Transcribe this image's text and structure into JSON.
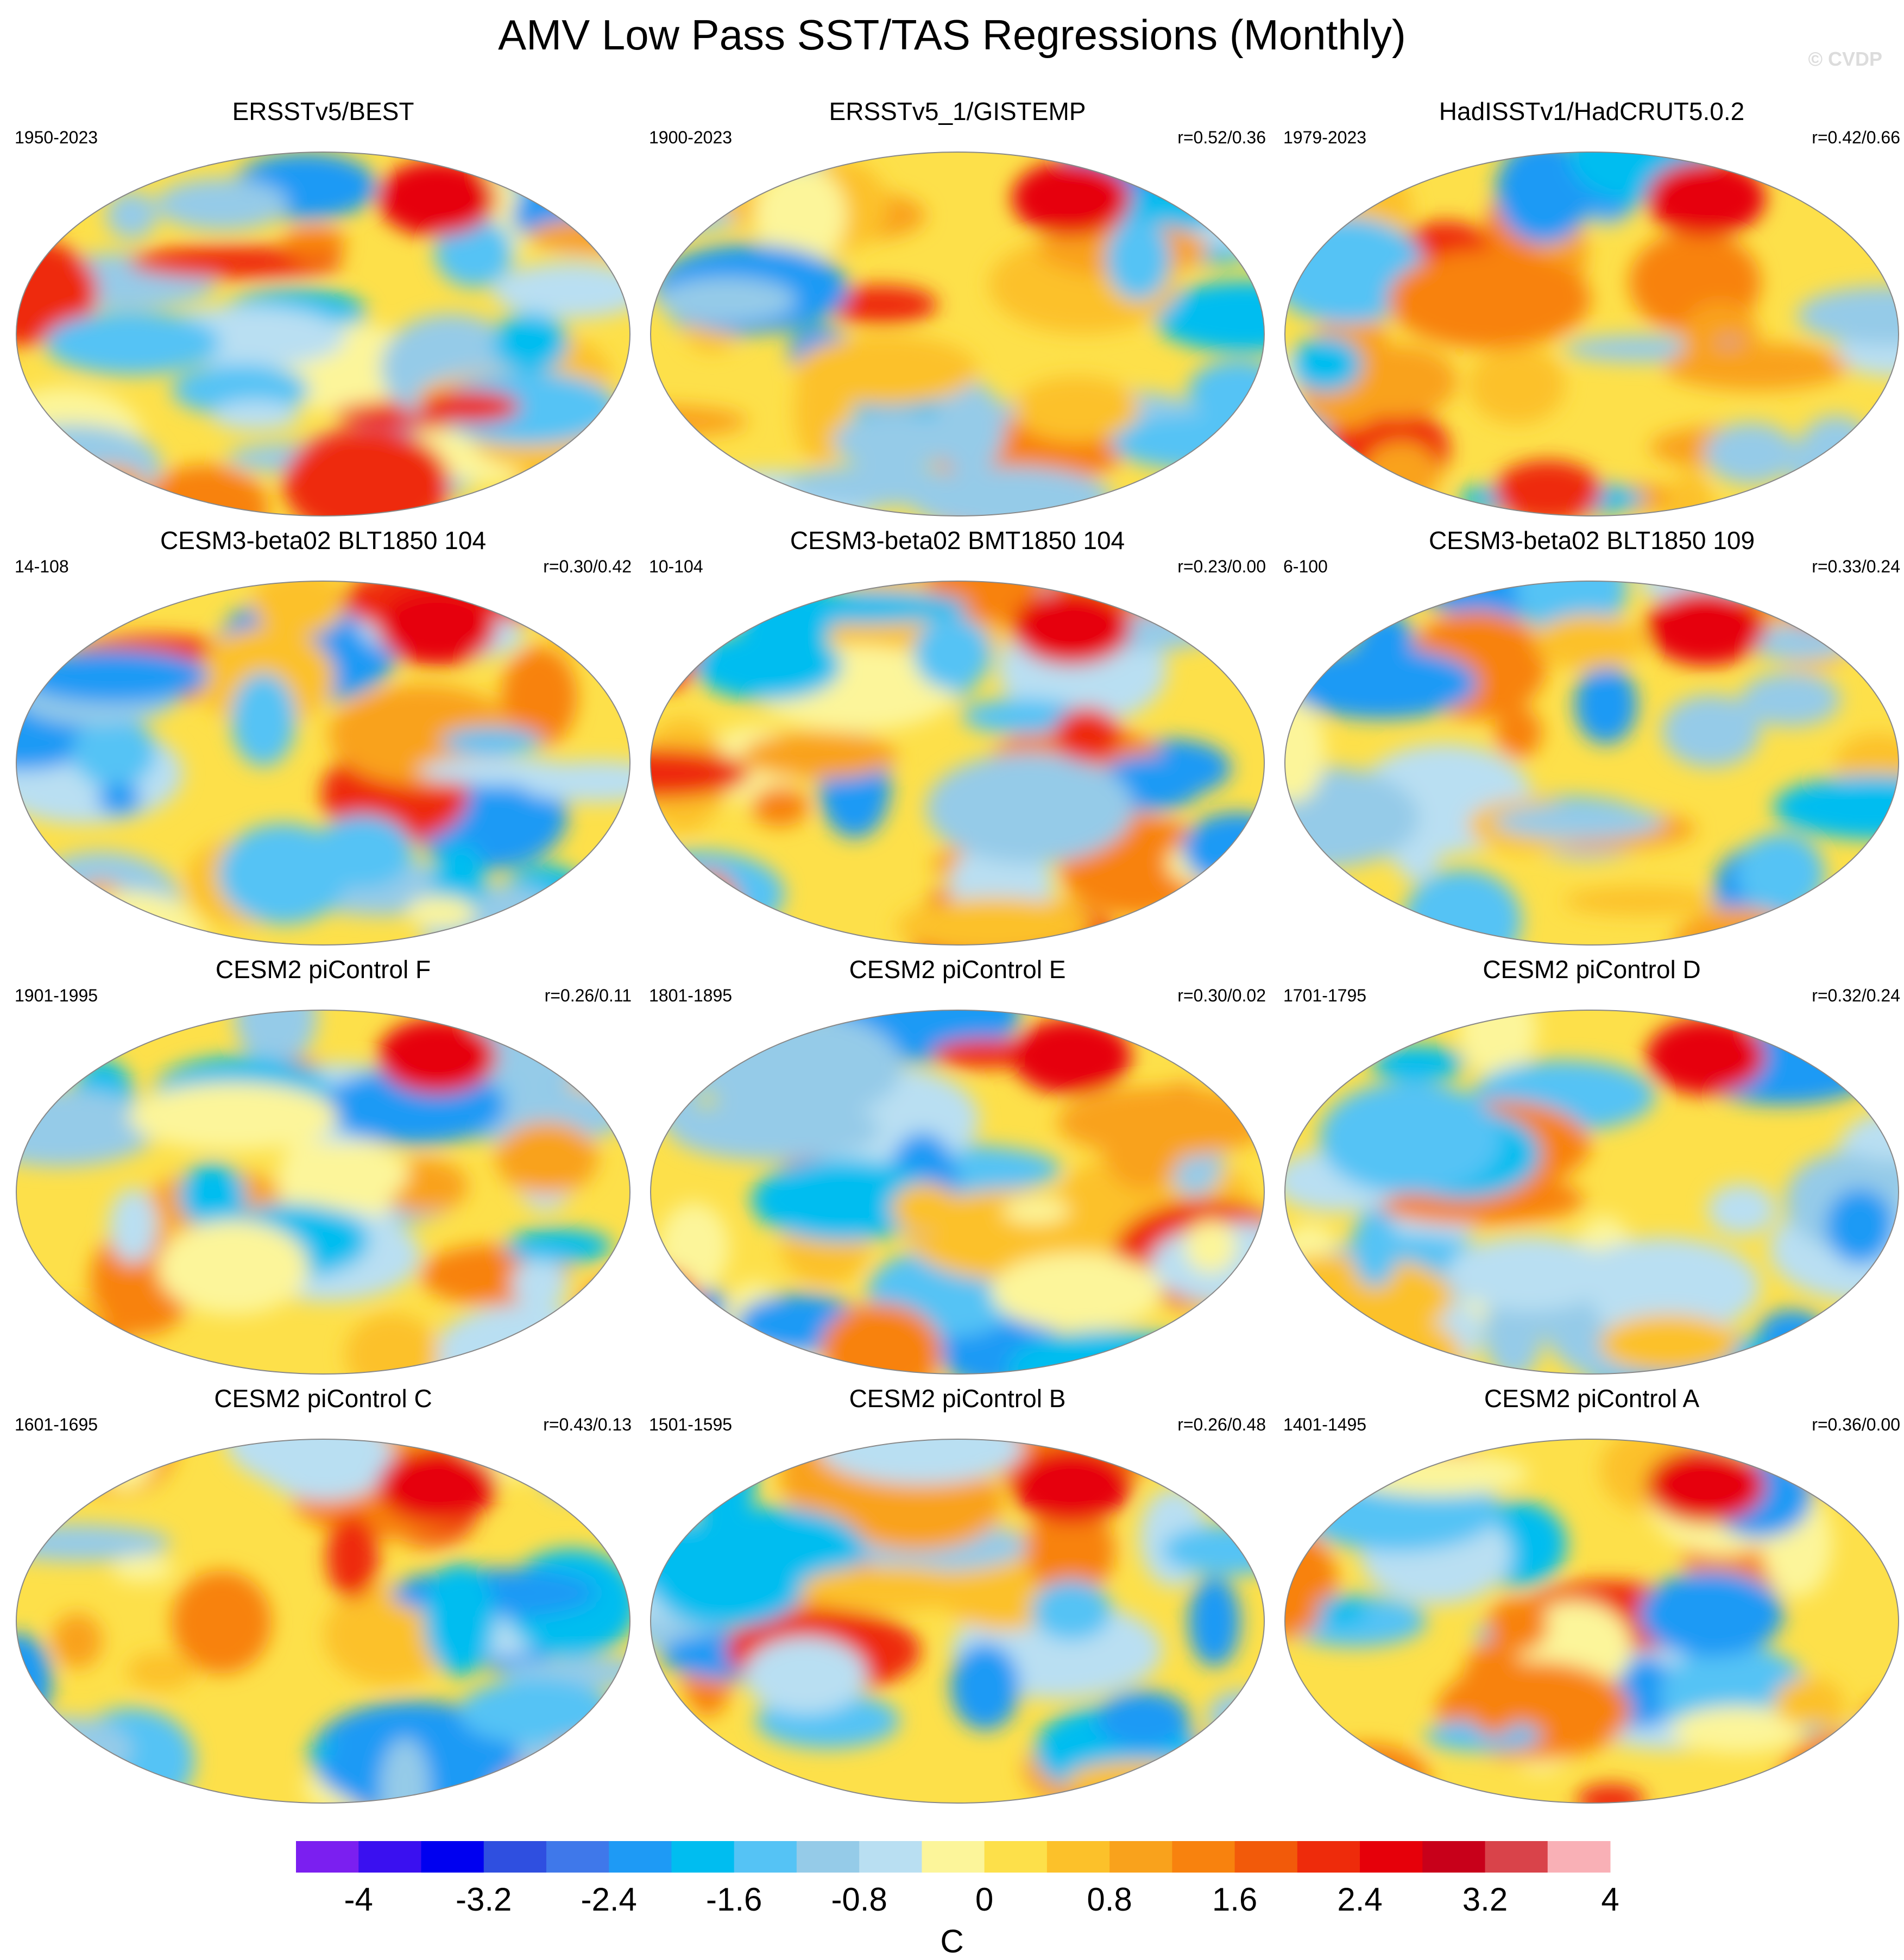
{
  "title": "AMV Low Pass SST/TAS Regressions (Monthly)",
  "watermark": "© CVDP",
  "panels": [
    {
      "title": "ERSSTv5/BEST",
      "period": "1950-2023",
      "corr": ""
    },
    {
      "title": "ERSSTv5_1/GISTEMP",
      "period": "1900-2023",
      "corr": "r=0.52/0.36"
    },
    {
      "title": "HadISSTv1/HadCRUT5.0.2",
      "period": "1979-2023",
      "corr": "r=0.42/0.66"
    },
    {
      "title": "CESM3-beta02 BLT1850 104",
      "period": "14-108",
      "corr": "r=0.30/0.42"
    },
    {
      "title": "CESM3-beta02 BMT1850 104",
      "period": "10-104",
      "corr": "r=0.23/0.00"
    },
    {
      "title": "CESM3-beta02 BLT1850 109",
      "period": "6-100",
      "corr": "r=0.33/0.24"
    },
    {
      "title": "CESM2 piControl F",
      "period": "1901-1995",
      "corr": "r=0.26/0.11"
    },
    {
      "title": "CESM2 piControl E",
      "period": "1801-1895",
      "corr": "r=0.30/0.02"
    },
    {
      "title": "CESM2 piControl D",
      "period": "1701-1795",
      "corr": "r=0.32/0.24"
    },
    {
      "title": "CESM2 piControl C",
      "period": "1601-1695",
      "corr": "r=0.43/0.13"
    },
    {
      "title": "CESM2 piControl B",
      "period": "1501-1595",
      "corr": "r=0.26/0.48"
    },
    {
      "title": "CESM2 piControl A",
      "period": "1401-1495",
      "corr": "r=0.36/0.00"
    }
  ],
  "colorbar": {
    "unit": "C",
    "colors": [
      "#7b1ff0",
      "#3a10f0",
      "#0000f0",
      "#2f4fe0",
      "#3f78ea",
      "#1e9af5",
      "#00bdf0",
      "#55c3f5",
      "#95cbe8",
      "#b9dff2",
      "#fcf59a",
      "#fde04a",
      "#fcc12a",
      "#f9a21c",
      "#f8820e",
      "#f25a0a",
      "#ee2b0b",
      "#e6000a",
      "#c8001a",
      "#d9434a",
      "#f9b0b6"
    ],
    "tick_labels": [
      "-4",
      "-3.2",
      "-2.4",
      "-1.6",
      "-0.8",
      "0",
      "0.8",
      "1.6",
      "2.4",
      "3.2",
      "4"
    ]
  }
}
